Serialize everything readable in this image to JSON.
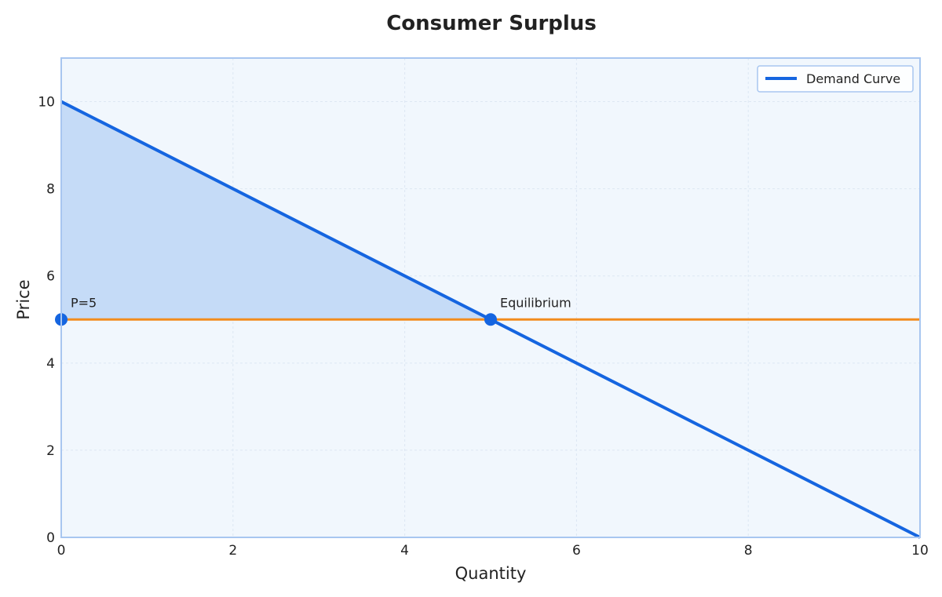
{
  "chart_data": {
    "type": "line",
    "title": "Consumer Surplus",
    "xlabel": "Quantity",
    "ylabel": "Price",
    "xlim": [
      0,
      10
    ],
    "ylim": [
      0,
      11
    ],
    "xticks": [
      0,
      2,
      4,
      6,
      8,
      10
    ],
    "yticks": [
      0,
      2,
      4,
      6,
      8,
      10
    ],
    "grid": true,
    "legend_position": "top-right",
    "series": [
      {
        "name": "Demand Curve",
        "color": "#1565e0",
        "x": [
          0,
          10
        ],
        "y": [
          10,
          0
        ]
      }
    ],
    "price_line": {
      "y": 5,
      "color": "#f28c1e"
    },
    "shaded_region": {
      "x": [
        0,
        5
      ],
      "upper": [
        10,
        5
      ],
      "lower": [
        5,
        5
      ],
      "color": "#c5dbf7"
    },
    "points": [
      {
        "x": 0,
        "y": 5,
        "label": "P=5"
      },
      {
        "x": 5,
        "y": 5,
        "label": "Equilibrium"
      }
    ],
    "colors": {
      "plot_bg": "#f1f7fd",
      "frame": "#a8c6f0",
      "grid": "#dde7f3",
      "point": "#1565e0"
    }
  }
}
